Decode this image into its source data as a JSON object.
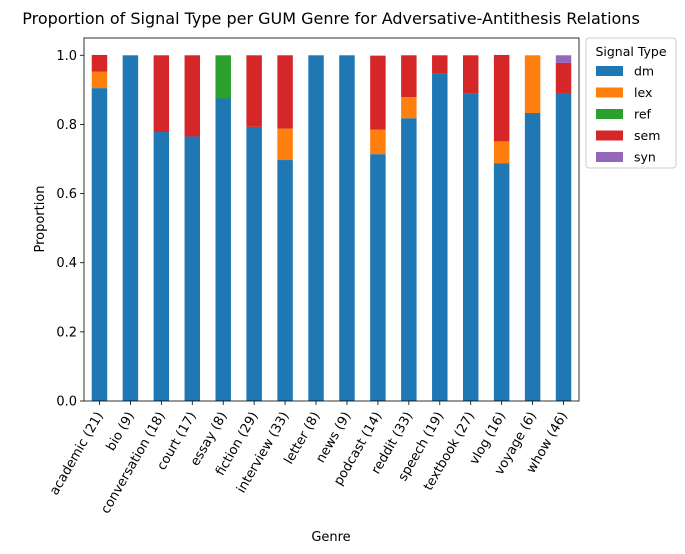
{
  "chart_data": {
    "type": "bar",
    "stacked": true,
    "title": "Proportion of Signal Type per GUM Genre for Adversative-Antithesis Relations",
    "xlabel": "Genre",
    "ylabel": "Proportion",
    "ylim": [
      0,
      1.05
    ],
    "yticks": [
      0.0,
      0.2,
      0.4,
      0.6,
      0.8,
      1.0
    ],
    "ytick_labels": [
      "0.0",
      "0.2",
      "0.4",
      "0.6",
      "0.8",
      "1.0"
    ],
    "grid": false,
    "legend": {
      "title": "Signal Type",
      "placement": "outside-top-right"
    },
    "categories": [
      "academic (21)",
      "bio (9)",
      "conversation (18)",
      "court (17)",
      "essay (8)",
      "fiction (29)",
      "interview (33)",
      "letter (8)",
      "news (9)",
      "podcast (14)",
      "reddit (33)",
      "speech (19)",
      "textbook (27)",
      "vlog (16)",
      "voyage (6)",
      "whow (46)"
    ],
    "series": [
      {
        "name": "dm",
        "color": "#1f77b4",
        "values": [
          0.905,
          1.0,
          0.778,
          0.765,
          0.875,
          0.793,
          0.697,
          1.0,
          1.0,
          0.714,
          0.818,
          0.947,
          0.889,
          0.688,
          0.833,
          0.891
        ]
      },
      {
        "name": "lex",
        "color": "#ff7f0e",
        "values": [
          0.048,
          0.0,
          0.0,
          0.0,
          0.0,
          0.0,
          0.091,
          0.0,
          0.0,
          0.071,
          0.061,
          0.0,
          0.0,
          0.063,
          0.167,
          0.0
        ]
      },
      {
        "name": "ref",
        "color": "#2ca02c",
        "values": [
          0.0,
          0.0,
          0.0,
          0.0,
          0.125,
          0.0,
          0.0,
          0.0,
          0.0,
          0.0,
          0.0,
          0.0,
          0.0,
          0.0,
          0.0,
          0.0
        ]
      },
      {
        "name": "sem",
        "color": "#d62728",
        "values": [
          0.048,
          0.0,
          0.222,
          0.235,
          0.0,
          0.207,
          0.212,
          0.0,
          0.0,
          0.214,
          0.121,
          0.053,
          0.111,
          0.25,
          0.0,
          0.087
        ]
      },
      {
        "name": "syn",
        "color": "#9467bd",
        "values": [
          0.0,
          0.0,
          0.0,
          0.0,
          0.0,
          0.0,
          0.0,
          0.0,
          0.0,
          0.0,
          0.0,
          0.0,
          0.0,
          0.0,
          0.0,
          0.022
        ]
      }
    ]
  }
}
